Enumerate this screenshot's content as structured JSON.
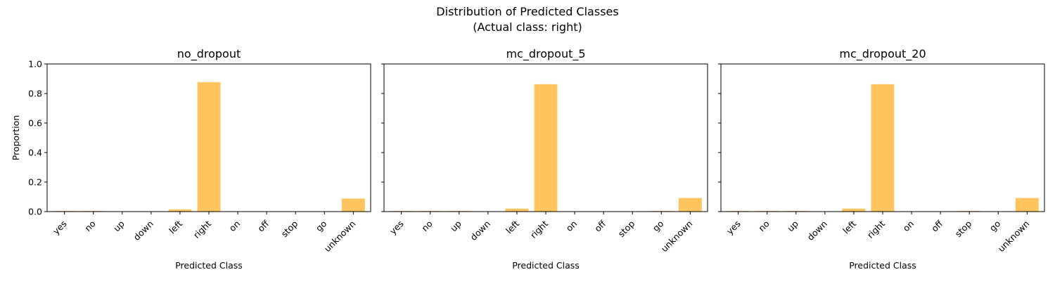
{
  "figure": {
    "title_line1": "Distribution of Predicted Classes",
    "title_line2": "(Actual class: right)"
  },
  "chart_data": [
    {
      "type": "bar",
      "title": "no_dropout",
      "xlabel": "Predicted Class",
      "ylabel": "Proportion",
      "categories": [
        "yes",
        "no",
        "up",
        "down",
        "left",
        "right",
        "on",
        "off",
        "stop",
        "go",
        "unknown"
      ],
      "values": [
        0.004,
        0.004,
        0.0,
        0.0,
        0.015,
        0.877,
        0.0,
        0.0,
        0.0,
        0.0,
        0.088
      ],
      "ylim": [
        0,
        1.0
      ],
      "yticks": [
        "0.0",
        "0.2",
        "0.4",
        "0.6",
        "0.8",
        "1.0"
      ],
      "color": "#ffbe4d",
      "grid": false
    },
    {
      "type": "bar",
      "title": "mc_dropout_5",
      "xlabel": "Predicted Class",
      "ylabel": "",
      "categories": [
        "yes",
        "no",
        "up",
        "down",
        "left",
        "right",
        "on",
        "off",
        "stop",
        "go",
        "unknown"
      ],
      "values": [
        0.004,
        0.004,
        0.004,
        0.0,
        0.02,
        0.863,
        0.0,
        0.0,
        0.0,
        0.004,
        0.092
      ],
      "ylim": [
        0,
        1.0
      ],
      "yticks": [
        "0.0",
        "0.2",
        "0.4",
        "0.6",
        "0.8",
        "1.0"
      ],
      "color": "#ffbe4d",
      "grid": false
    },
    {
      "type": "bar",
      "title": "mc_dropout_20",
      "xlabel": "Predicted Class",
      "ylabel": "",
      "categories": [
        "yes",
        "no",
        "up",
        "down",
        "left",
        "right",
        "on",
        "off",
        "stop",
        "go",
        "unknown"
      ],
      "values": [
        0.004,
        0.004,
        0.004,
        0.0,
        0.02,
        0.863,
        0.0,
        0.0,
        0.004,
        0.0,
        0.092
      ],
      "ylim": [
        0,
        1.0
      ],
      "yticks": [
        "0.0",
        "0.2",
        "0.4",
        "0.6",
        "0.8",
        "1.0"
      ],
      "color": "#ffbe4d",
      "grid": false
    }
  ]
}
